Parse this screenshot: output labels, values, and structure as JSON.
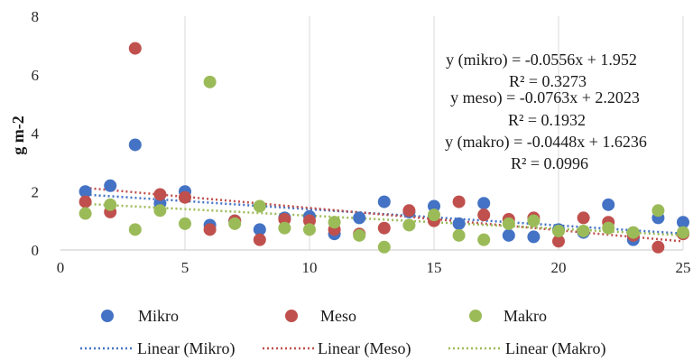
{
  "chart_data": {
    "type": "scatter",
    "title": "",
    "xlabel": "",
    "ylabel": "g m-2",
    "xlim": [
      0,
      25
    ],
    "ylim": [
      0,
      8
    ],
    "x_ticks": [
      0,
      5,
      10,
      15,
      20,
      25
    ],
    "y_ticks": [
      0,
      2,
      4,
      6,
      8
    ],
    "grid": "vertical",
    "legend_position": "bottom",
    "series": [
      {
        "name": "Mikro",
        "color": "#4472c4",
        "points": [
          [
            1,
            2.0
          ],
          [
            2,
            2.2
          ],
          [
            3,
            3.6
          ],
          [
            4,
            1.6
          ],
          [
            5,
            2.0
          ],
          [
            6,
            0.85
          ],
          [
            7,
            1.0
          ],
          [
            8,
            0.7
          ],
          [
            9,
            1.1
          ],
          [
            10,
            1.15
          ],
          [
            11,
            0.55
          ],
          [
            12,
            1.1
          ],
          [
            13,
            1.65
          ],
          [
            14,
            1.3
          ],
          [
            15,
            1.5
          ],
          [
            16,
            0.9
          ],
          [
            17,
            1.6
          ],
          [
            18,
            0.5
          ],
          [
            19,
            0.45
          ],
          [
            20,
            0.7
          ],
          [
            21,
            0.6
          ],
          [
            22,
            1.55
          ],
          [
            23,
            0.35
          ],
          [
            24,
            1.1
          ],
          [
            25,
            0.95
          ]
        ],
        "trend": {
          "slope": -0.0556,
          "intercept": 1.952
        }
      },
      {
        "name": "Meso",
        "color": "#c0504d",
        "points": [
          [
            1,
            1.65
          ],
          [
            2,
            1.3
          ],
          [
            3,
            6.9
          ],
          [
            4,
            1.9
          ],
          [
            5,
            1.8
          ],
          [
            6,
            0.7
          ],
          [
            7,
            1.0
          ],
          [
            8,
            0.35
          ],
          [
            9,
            1.05
          ],
          [
            10,
            1.0
          ],
          [
            11,
            0.7
          ],
          [
            12,
            0.55
          ],
          [
            13,
            0.75
          ],
          [
            14,
            1.35
          ],
          [
            15,
            1.0
          ],
          [
            16,
            1.65
          ],
          [
            17,
            1.2
          ],
          [
            18,
            1.05
          ],
          [
            19,
            1.1
          ],
          [
            20,
            0.3
          ],
          [
            21,
            1.1
          ],
          [
            22,
            0.95
          ],
          [
            23,
            0.5
          ],
          [
            24,
            0.1
          ],
          [
            25,
            0.55
          ]
        ],
        "trend": {
          "slope": -0.0763,
          "intercept": 2.2023
        }
      },
      {
        "name": "Makro",
        "color": "#9bbb59",
        "points": [
          [
            1,
            1.25
          ],
          [
            2,
            1.55
          ],
          [
            3,
            0.7
          ],
          [
            4,
            1.35
          ],
          [
            5,
            0.9
          ],
          [
            6,
            5.75
          ],
          [
            7,
            0.9
          ],
          [
            8,
            1.5
          ],
          [
            9,
            0.75
          ],
          [
            10,
            0.7
          ],
          [
            11,
            0.95
          ],
          [
            12,
            0.5
          ],
          [
            13,
            0.1
          ],
          [
            14,
            0.85
          ],
          [
            15,
            1.2
          ],
          [
            16,
            0.5
          ],
          [
            17,
            0.35
          ],
          [
            18,
            0.9
          ],
          [
            19,
            1.0
          ],
          [
            20,
            0.65
          ],
          [
            21,
            0.65
          ],
          [
            22,
            0.75
          ],
          [
            23,
            0.6
          ],
          [
            24,
            1.35
          ],
          [
            25,
            0.6
          ]
        ],
        "trend": {
          "slope": -0.0448,
          "intercept": 1.6236
        }
      }
    ],
    "annotations": [
      "y (mikro) = -0.0556x + 1.952",
      "R² = 0.3273",
      "y meso) = -0.0763x + 2.2023",
      "R² = 0.1932",
      "y (makro) = -0.0448x + 1.6236",
      "R² = 0.0996"
    ],
    "legend_trend_labels": [
      "Linear (Mikro)",
      "Linear (Meso)",
      "Linear (Makro)"
    ]
  }
}
